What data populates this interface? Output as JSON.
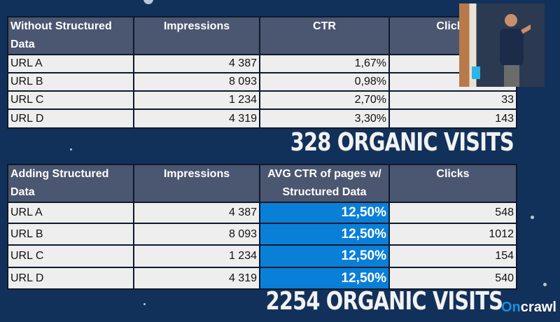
{
  "table1": {
    "headers": [
      "Without Structured Data",
      "Impressions",
      "CTR",
      "Clicks"
    ],
    "rows": [
      {
        "url": "URL A",
        "impressions": "4 387",
        "ctr": "1,67%",
        "clicks": ""
      },
      {
        "url": "URL B",
        "impressions": "8 093",
        "ctr": "0,98%",
        "clicks": ""
      },
      {
        "url": "URL C",
        "impressions": "1 234",
        "ctr": "2,70%",
        "clicks": "33"
      },
      {
        "url": "URL D",
        "impressions": "4 319",
        "ctr": "3,30%",
        "clicks": "143"
      }
    ],
    "total": "328 ORGANIC VISITS"
  },
  "table2": {
    "headers": [
      "Adding Structured Data",
      "Impressions",
      "AVG CTR of pages w/ Structured Data",
      "Clicks"
    ],
    "rows": [
      {
        "url": "URL A",
        "impressions": "4 387",
        "ctr": "12,50%",
        "clicks": "548"
      },
      {
        "url": "URL B",
        "impressions": "8 093",
        "ctr": "12,50%",
        "clicks": "1012"
      },
      {
        "url": "URL C",
        "impressions": "1 234",
        "ctr": "12,50%",
        "clicks": "154"
      },
      {
        "url": "URL D",
        "impressions": "4 319",
        "ctr": "12,50%",
        "clicks": "540"
      }
    ],
    "total": "2254 ORGANIC VISITS"
  },
  "logo": {
    "part1": "On",
    "part2": "crawl"
  },
  "colors": {
    "background": "#12315a",
    "header": "#4b5670",
    "highlight": "#0a7fd8",
    "brand": "#1a8fe6"
  }
}
